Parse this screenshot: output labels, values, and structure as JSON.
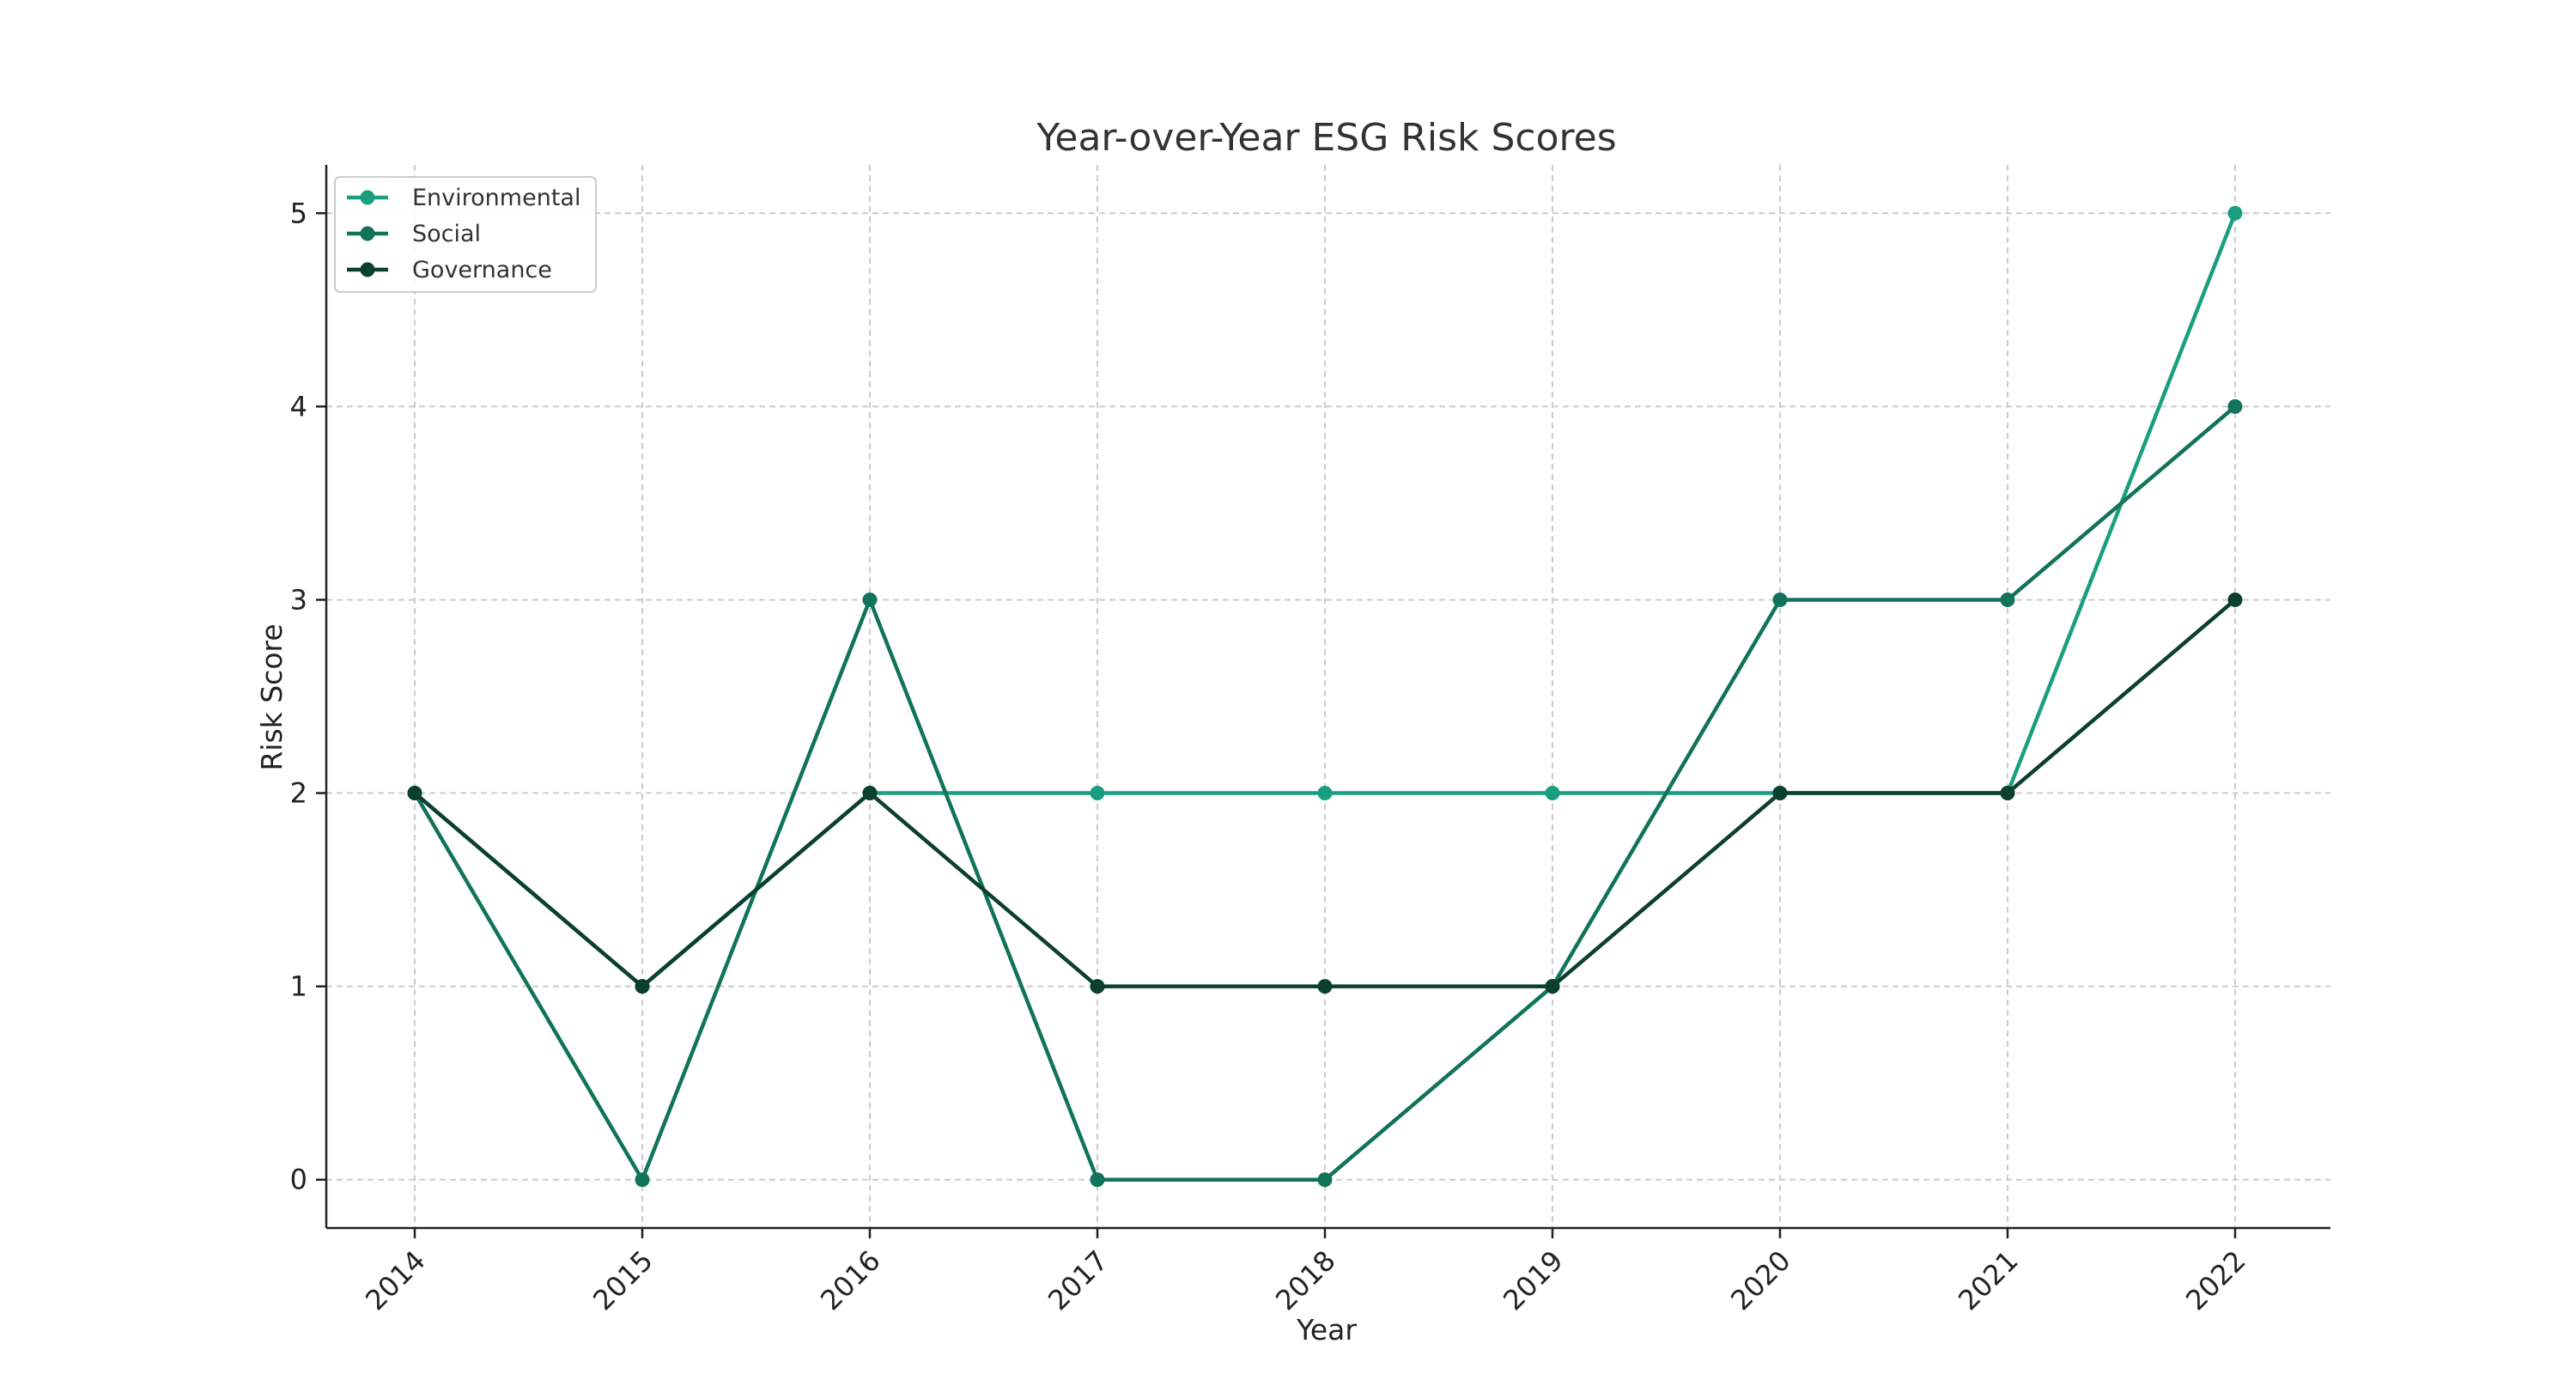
{
  "chart_data": {
    "type": "line",
    "title": "Year-over-Year ESG Risk Scores",
    "xlabel": "Year",
    "ylabel": "Risk Score",
    "categories": [
      "2014",
      "2015",
      "2016",
      "2017",
      "2018",
      "2019",
      "2020",
      "2021",
      "2022"
    ],
    "yticks": [
      "0",
      "1",
      "2",
      "3",
      "4",
      "5"
    ],
    "ylim": [
      -0.25,
      5.25
    ],
    "grid": true,
    "legend_position": "top-left",
    "series": [
      {
        "name": "Environmental",
        "color": "#1a9e80",
        "values": [
          2,
          1,
          2,
          2,
          2,
          2,
          2,
          2,
          5
        ]
      },
      {
        "name": "Social",
        "color": "#11735a",
        "values": [
          2,
          0,
          3,
          0,
          0,
          1,
          3,
          3,
          4
        ]
      },
      {
        "name": "Governance",
        "color": "#0b3f2e",
        "values": [
          2,
          1,
          2,
          1,
          1,
          1,
          2,
          2,
          3
        ]
      }
    ]
  }
}
